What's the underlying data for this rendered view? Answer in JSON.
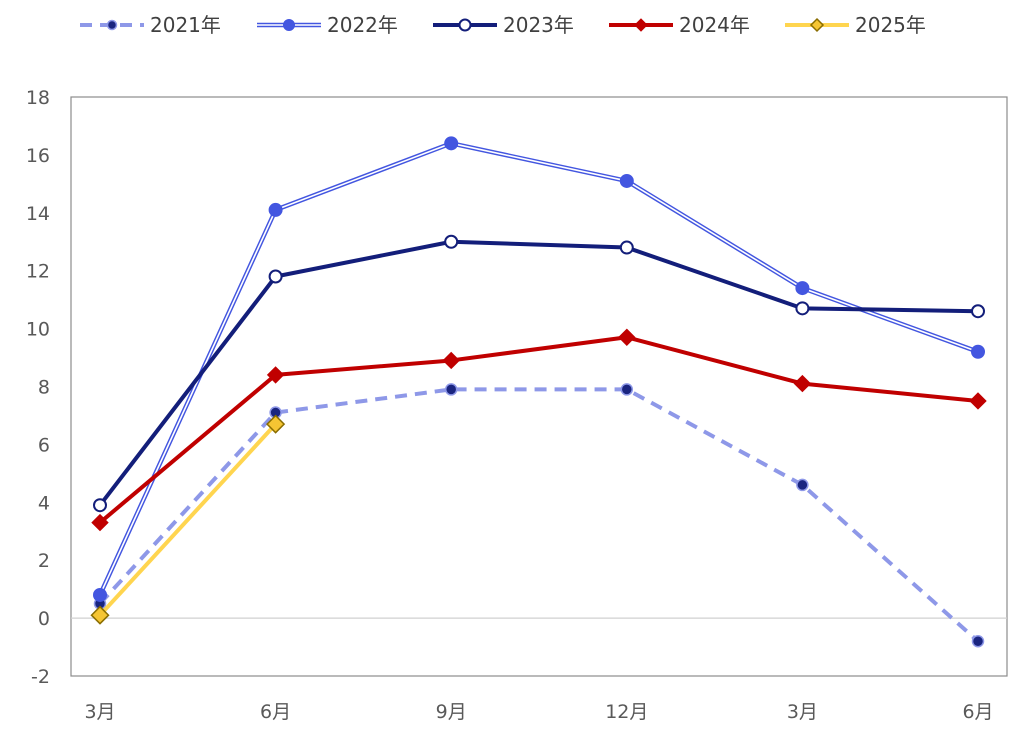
{
  "chart_data": {
    "type": "line",
    "categories": [
      "3月",
      "6月",
      "9月",
      "12月",
      "3月",
      "6月"
    ],
    "ylim": [
      -2,
      18
    ],
    "yticks": [
      -2,
      0,
      2,
      4,
      6,
      8,
      10,
      12,
      14,
      16,
      18
    ],
    "grid": false,
    "legend_position": "top",
    "series": [
      {
        "name": "2021年",
        "values": [
          0.5,
          7.1,
          7.9,
          7.9,
          4.6,
          -0.8
        ],
        "color": "#8E98E8",
        "marker_fill": "#1A2580",
        "line_style": "dashed",
        "marker": "circle-small"
      },
      {
        "name": "2022年",
        "values": [
          0.8,
          14.1,
          16.4,
          15.1,
          11.4,
          9.2
        ],
        "color": "#4356E0",
        "marker_fill": "#4356E0",
        "line_style": "double",
        "marker": "circle"
      },
      {
        "name": "2023年",
        "values": [
          3.9,
          11.8,
          13.0,
          12.8,
          10.7,
          10.6
        ],
        "color": "#131E7A",
        "marker_fill": "#FFFFFF",
        "line_style": "solid",
        "marker": "circle-open"
      },
      {
        "name": "2024年",
        "values": [
          3.3,
          8.4,
          8.9,
          9.7,
          8.1,
          7.5
        ],
        "color": "#C00000",
        "marker_fill": "#C00000",
        "line_style": "solid",
        "marker": "diamond"
      },
      {
        "name": "2025年",
        "values": [
          0.1,
          6.7,
          null,
          null,
          null,
          null
        ],
        "color": "#FFD54F",
        "marker_fill": "#F5C533",
        "line_style": "solid",
        "marker": "diamond-outlined"
      }
    ]
  }
}
